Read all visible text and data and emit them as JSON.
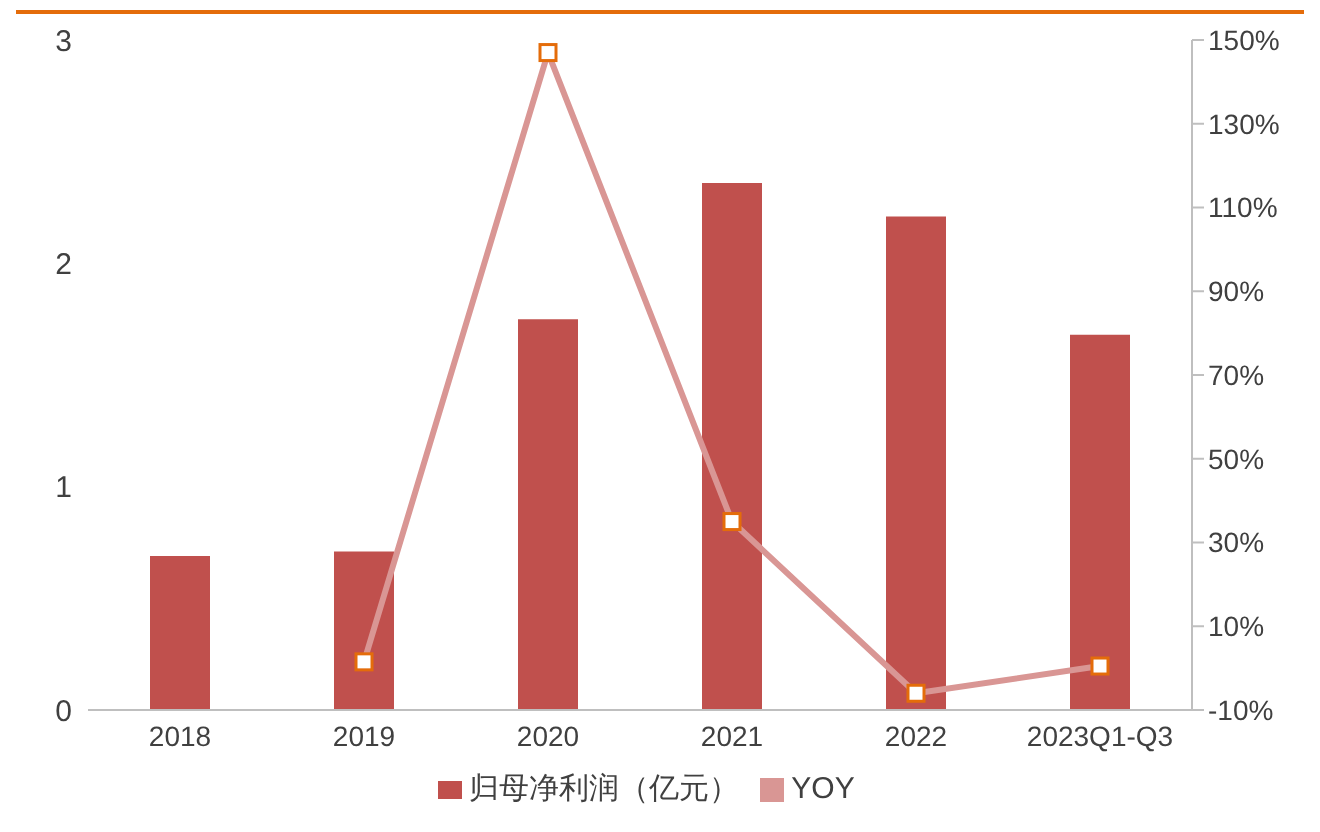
{
  "chart_data": {
    "type": "bar",
    "categories": [
      "2018",
      "2019",
      "2020",
      "2021",
      "2022",
      "2023Q1-Q3"
    ],
    "series": [
      {
        "name": "归母净利润（亿元）",
        "color": "#c0504d",
        "values": [
          0.69,
          0.71,
          1.75,
          2.36,
          2.21,
          1.68
        ]
      },
      {
        "name": "YOY",
        "type": "line",
        "axis": "y2",
        "color": "#d99694",
        "marker": "square",
        "values": [
          null,
          1.5,
          147,
          35,
          -6,
          0.5
        ]
      }
    ],
    "ylim": [
      0,
      3
    ],
    "yticks": [
      0,
      1,
      2,
      3
    ],
    "y2lim": [
      -10,
      150
    ],
    "y2ticks": [
      {
        "value": -10,
        "label": "-10%"
      },
      {
        "value": 10,
        "label": "10%"
      },
      {
        "value": 30,
        "label": "30%"
      },
      {
        "value": 50,
        "label": "50%"
      },
      {
        "value": 70,
        "label": "70%"
      },
      {
        "value": 90,
        "label": "90%"
      },
      {
        "value": 110,
        "label": "110%"
      },
      {
        "value": 130,
        "label": "130%"
      },
      {
        "value": 150,
        "label": "150%"
      }
    ],
    "grid": false,
    "legend": "bottom"
  }
}
